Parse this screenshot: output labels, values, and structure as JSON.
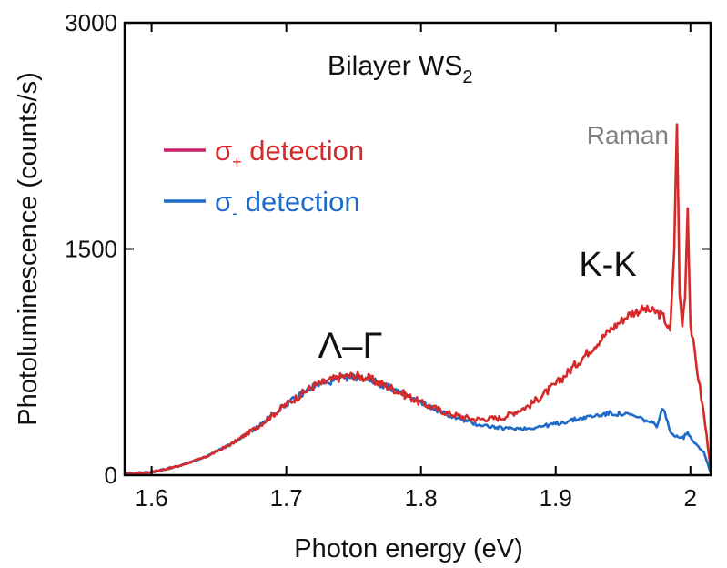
{
  "chart_data": {
    "type": "line",
    "title": "Bilayer WS",
    "title_subscript": "2",
    "xlabel": "Photon energy (eV)",
    "ylabel": "Photoluminescence (counts/s)",
    "xlim": [
      1.58,
      2.015
    ],
    "ylim": [
      0,
      3000
    ],
    "xticks": [
      1.6,
      1.7,
      1.8,
      1.9,
      2.0
    ],
    "xtick_labels": [
      "1.6",
      "1.7",
      "1.8",
      "1.9",
      "2"
    ],
    "yticks": [
      0,
      1500,
      3000
    ],
    "ytick_labels": [
      "0",
      "1500",
      "3000"
    ],
    "grid": false,
    "legend_position": "top-left",
    "series": [
      {
        "name": "σ+ detection",
        "name_main": "σ",
        "name_sub": "+",
        "name_rest": " detection",
        "color": "#d42a2a",
        "line_color": "#c8206a",
        "x": [
          1.58,
          1.6,
          1.62,
          1.64,
          1.66,
          1.68,
          1.7,
          1.72,
          1.74,
          1.75,
          1.76,
          1.78,
          1.8,
          1.82,
          1.84,
          1.86,
          1.88,
          1.9,
          1.92,
          1.94,
          1.955,
          1.965,
          1.975,
          1.98,
          1.985,
          1.988,
          1.99,
          1.992,
          1.994,
          1.996,
          1.998,
          2.0,
          2.005,
          2.01,
          2.015
        ],
        "y": [
          10,
          20,
          60,
          120,
          210,
          330,
          470,
          590,
          650,
          660,
          645,
          570,
          480,
          410,
          370,
          380,
          460,
          600,
          780,
          960,
          1070,
          1100,
          1080,
          1050,
          950,
          1500,
          2350,
          1200,
          1000,
          1200,
          1780,
          1000,
          700,
          400,
          50
        ]
      },
      {
        "name": "σ- detection",
        "name_main": "σ",
        "name_sub": "-",
        "name_rest": " detection",
        "color": "#1f6bc7",
        "line_color": "#1f6bc7",
        "x": [
          1.58,
          1.6,
          1.62,
          1.64,
          1.66,
          1.68,
          1.7,
          1.72,
          1.74,
          1.75,
          1.76,
          1.78,
          1.8,
          1.82,
          1.84,
          1.86,
          1.88,
          1.9,
          1.92,
          1.94,
          1.955,
          1.965,
          1.975,
          1.98,
          1.985,
          1.99,
          1.995,
          1.998,
          2.0,
          2.005,
          2.01,
          2.015
        ],
        "y": [
          10,
          20,
          60,
          120,
          210,
          330,
          470,
          590,
          640,
          650,
          640,
          570,
          480,
          400,
          340,
          310,
          310,
          340,
          380,
          410,
          400,
          370,
          330,
          450,
          280,
          260,
          250,
          290,
          250,
          200,
          150,
          20
        ]
      }
    ],
    "annotations": [
      {
        "text": "Raman",
        "x": 1.94,
        "y": 2280,
        "color": "#808080",
        "size": 28
      },
      {
        "text": "K-K",
        "x": 1.935,
        "y": 1400,
        "color": "#111111",
        "size": 38
      },
      {
        "text": "Λ–Γ",
        "x": 1.755,
        "y": 820,
        "color": "#111111",
        "size": 40,
        "serif": true
      }
    ]
  }
}
